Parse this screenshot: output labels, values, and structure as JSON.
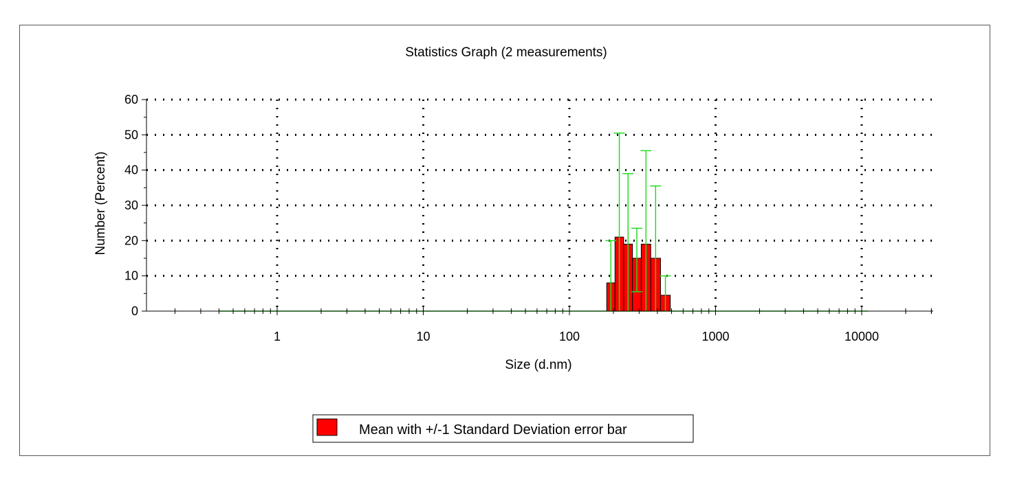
{
  "chart_data": {
    "type": "bar",
    "title": "Statistics Graph (2 measurements)",
    "xlabel": "Size (d.nm)",
    "ylabel": "Number (Percent)",
    "x_scale": "log",
    "xlim": [
      0.1,
      30000
    ],
    "ylim": [
      0,
      60
    ],
    "x_ticks": [
      1,
      10,
      100,
      1000,
      10000
    ],
    "x_tick_labels": [
      "1",
      "10",
      "100",
      "1000",
      "10000"
    ],
    "y_ticks": [
      0,
      10,
      20,
      30,
      40,
      50,
      60
    ],
    "y_tick_labels": [
      "0",
      "10",
      "20",
      "30",
      "40",
      "50",
      "60"
    ],
    "grid": true,
    "legend_position": "bottom-center",
    "series": [
      {
        "name": "Mean with +/-1 Standard Deviation error bar",
        "color": "#ff0000",
        "error_color": "#22dd22",
        "x_range": [
          0.4,
          11000
        ],
        "bins": [
          {
            "x0": 180,
            "x1": 205,
            "value": 8,
            "err_low": 0,
            "err_high": 20
          },
          {
            "x0": 205,
            "x1": 235,
            "value": 21,
            "err_low": 0,
            "err_high": 50.5
          },
          {
            "x0": 235,
            "x1": 270,
            "value": 19,
            "err_low": 0,
            "err_high": 39
          },
          {
            "x0": 270,
            "x1": 310,
            "value": 15,
            "err_low": 5.5,
            "err_high": 23.5
          },
          {
            "x0": 310,
            "x1": 360,
            "value": 19,
            "err_low": 0,
            "err_high": 45.5
          },
          {
            "x0": 360,
            "x1": 420,
            "value": 15,
            "err_low": 0,
            "err_high": 35.5
          },
          {
            "x0": 420,
            "x1": 490,
            "value": 4.5,
            "err_low": 0,
            "err_high": 10
          }
        ]
      }
    ]
  }
}
